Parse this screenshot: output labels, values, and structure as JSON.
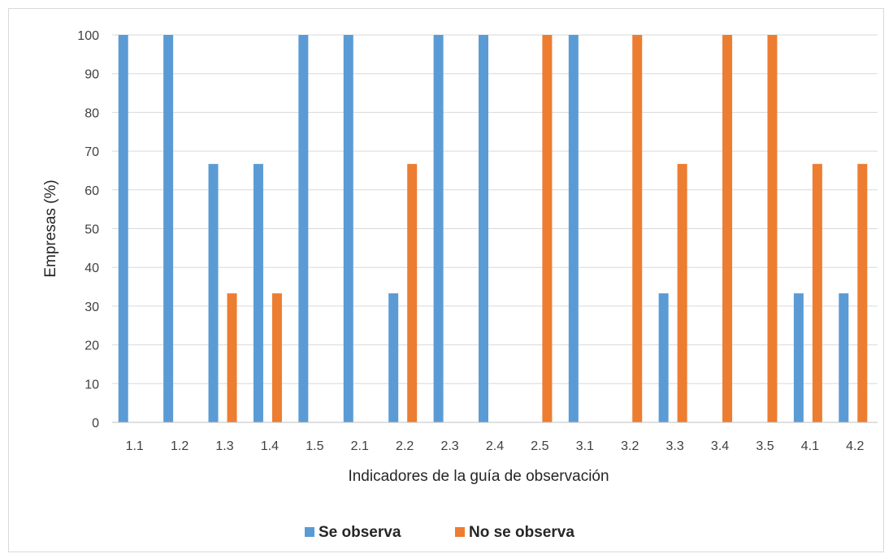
{
  "chart_data": {
    "type": "bar",
    "categories": [
      "1.1",
      "1.2",
      "1.3",
      "1.4",
      "1.5",
      "2.1",
      "2.2",
      "2.3",
      "2.4",
      "2.5",
      "3.1",
      "3.2",
      "3.3",
      "3.4",
      "3.5",
      "4.1",
      "4.2"
    ],
    "series": [
      {
        "name": "Se observa",
        "color": "#5b9bd5",
        "values": [
          100,
          100,
          66.7,
          66.7,
          100,
          100,
          33.3,
          100,
          100,
          0,
          100,
          0,
          33.3,
          0,
          0,
          33.3,
          33.3
        ]
      },
      {
        "name": "No se observa",
        "color": "#ed7d31",
        "values": [
          0,
          0,
          33.3,
          33.3,
          0,
          0,
          66.7,
          0,
          0,
          100,
          0,
          100,
          66.7,
          100,
          100,
          66.7,
          66.7
        ]
      }
    ],
    "xlabel": "Indicadores de la guía de observación",
    "ylabel": "Empresas (%)",
    "ylim": [
      0,
      100
    ],
    "yticks": [
      0,
      10,
      20,
      30,
      40,
      50,
      60,
      70,
      80,
      90,
      100
    ],
    "grid": true,
    "legend_position": "bottom"
  }
}
